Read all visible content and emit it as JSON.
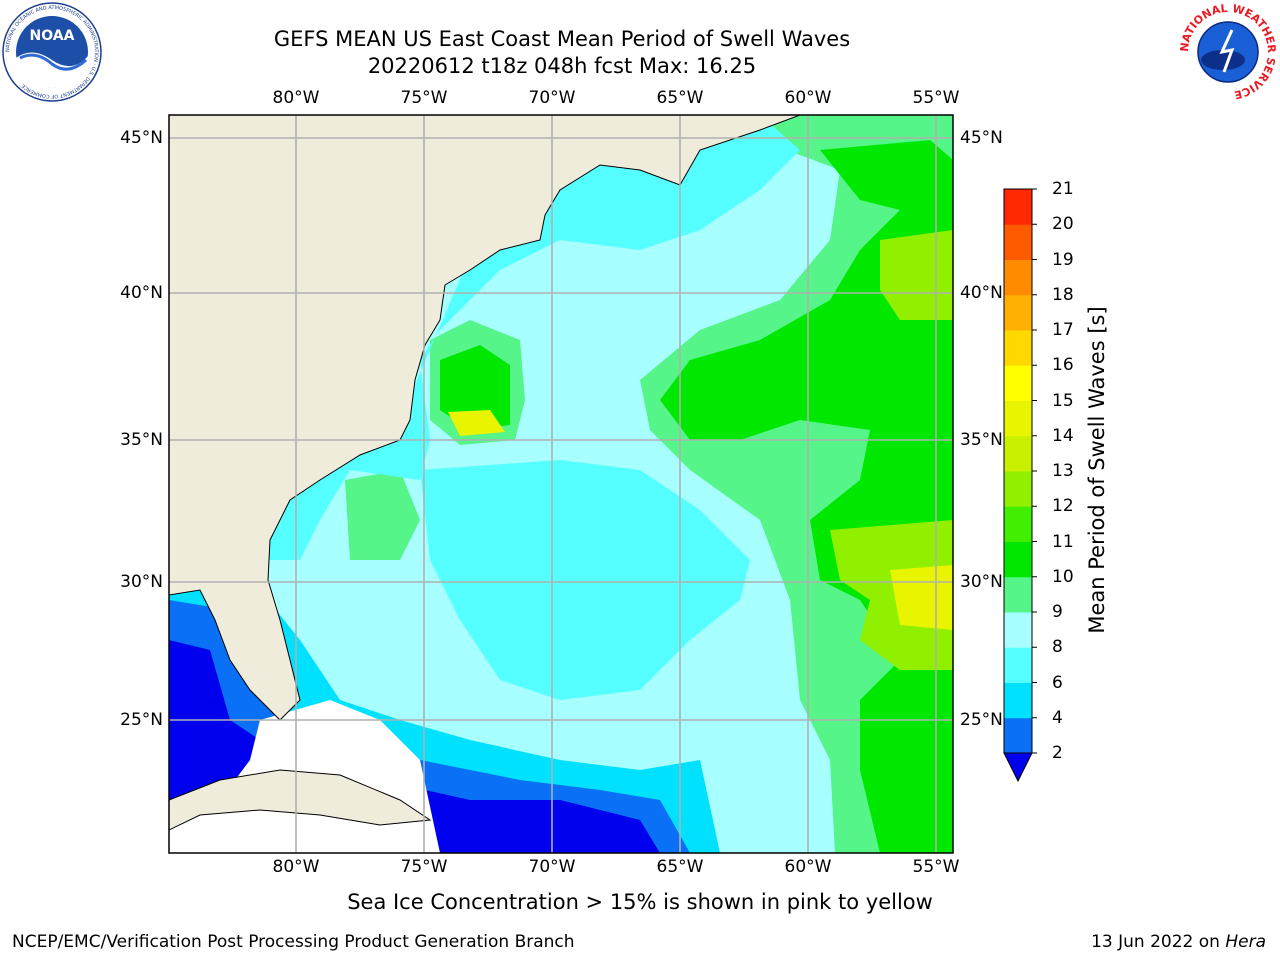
{
  "header": {
    "title_line1": "GEFS MEAN US East Coast Mean Period of Swell Waves",
    "title_line2": "20220612 t18z 048h fcst   Max: 16.25"
  },
  "logos": {
    "left": "NOAA",
    "left_ring_text": "NATIONAL OCEANIC AND ATMOSPHERIC ADMINISTRATION · U.S. DEPARTMENT OF COMMERCE",
    "right_ring_text": "NATIONAL WEATHER SERVICE"
  },
  "map": {
    "lon_labels": [
      "80°W",
      "75°W",
      "70°W",
      "65°W",
      "60°W",
      "55°W"
    ],
    "lat_labels": [
      "45°N",
      "40°N",
      "35°N",
      "30°N",
      "25°N"
    ],
    "land_color": "#efecdc",
    "grid_color": "#b0b0b0"
  },
  "colorbar": {
    "label": "Mean Period of Swell Waves [s]",
    "ticks": [
      "2",
      "4",
      "6",
      "8",
      "9",
      "10",
      "11",
      "12",
      "13",
      "14",
      "15",
      "16",
      "17",
      "18",
      "19",
      "20",
      "21"
    ],
    "colors": [
      "#0a70f5",
      "#00e0ff",
      "#55ffff",
      "#a8ffff",
      "#55f58a",
      "#00e800",
      "#40f000",
      "#90f000",
      "#c8f000",
      "#e8f400",
      "#ffff00",
      "#ffd800",
      "#ffb000",
      "#ff8c00",
      "#ff5a00",
      "#ff2800",
      "#ff0000"
    ],
    "extend_color": "#0000ee"
  },
  "note": "Sea Ice Concentration > 15% is shown in pink to yellow",
  "footer": {
    "left": "NCEP/EMC/Verification Post Processing Product Generation Branch",
    "right_date": "13 Jun 2022 on ",
    "right_machine": "Hera"
  }
}
